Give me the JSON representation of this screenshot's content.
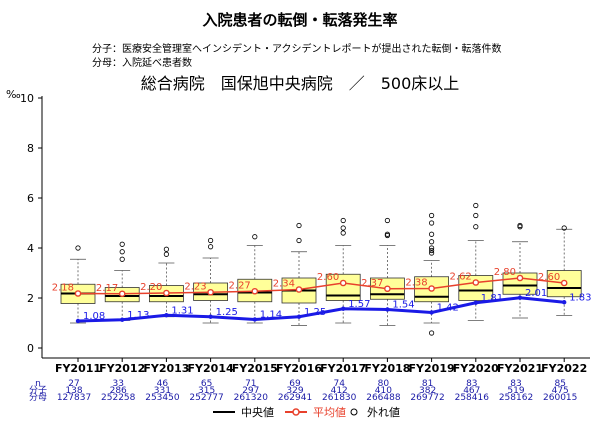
{
  "title": "入院患者の転倒・転落発生率",
  "notes": {
    "numerator": "分子：医療安全管理室へインシデント・アクシデントレポートが提出された転倒・転落件数",
    "denominator": "分母：入院延べ患者数"
  },
  "subtitle": "総合病院　国保旭中央病院　／　500床以上",
  "legend": {
    "median": "中央値",
    "mean": "平均値",
    "outlier": "外れ値"
  },
  "colors": {
    "box_fill": "#ffff99",
    "median": "#000000",
    "mean": "#e8412c",
    "hospital": "#1a1ae6",
    "count_text": "#1a1aa6"
  },
  "chart_data": {
    "type": "box",
    "y_unit": "‰",
    "ylim": [
      0,
      10
    ],
    "yticks": [
      0,
      2,
      4,
      6,
      8,
      10
    ],
    "categories": [
      "FY2011",
      "FY2012",
      "FY2013",
      "FY2014",
      "FY2015",
      "FY2016",
      "FY2017",
      "FY2018",
      "FY2019",
      "FY2020",
      "FY2021",
      "FY2022"
    ],
    "boxes": [
      {
        "whisker_low": 1.0,
        "q1": 1.78,
        "median": 2.18,
        "q3": 2.55,
        "whisker_high": 3.55,
        "outliers": [
          4.0
        ]
      },
      {
        "whisker_low": 1.1,
        "q1": 1.85,
        "median": 2.08,
        "q3": 2.42,
        "whisker_high": 3.1,
        "outliers": [
          3.55,
          3.85,
          4.15
        ]
      },
      {
        "whisker_low": 1.25,
        "q1": 1.85,
        "median": 2.08,
        "q3": 2.5,
        "whisker_high": 3.4,
        "outliers": [
          3.75,
          3.95
        ]
      },
      {
        "whisker_low": 1.0,
        "q1": 1.9,
        "median": 2.15,
        "q3": 2.6,
        "whisker_high": 3.6,
        "outliers": [
          4.05,
          4.3
        ]
      },
      {
        "whisker_low": 1.0,
        "q1": 1.85,
        "median": 2.22,
        "q3": 2.75,
        "whisker_high": 4.1,
        "outliers": [
          4.45
        ]
      },
      {
        "whisker_low": 0.9,
        "q1": 1.8,
        "median": 2.3,
        "q3": 2.8,
        "whisker_high": 3.85,
        "outliers": [
          4.3,
          4.9
        ]
      },
      {
        "whisker_low": 1.0,
        "q1": 1.9,
        "median": 2.1,
        "q3": 2.95,
        "whisker_high": 4.1,
        "outliers": [
          4.6,
          4.8,
          5.1
        ]
      },
      {
        "whisker_low": 0.9,
        "q1": 1.95,
        "median": 2.15,
        "q3": 2.8,
        "whisker_high": 4.1,
        "outliers": [
          4.5,
          4.55,
          5.1
        ]
      },
      {
        "whisker_low": 1.0,
        "q1": 1.85,
        "median": 2.05,
        "q3": 2.85,
        "whisker_high": 3.5,
        "outliers": [
          0.6,
          3.8,
          3.9,
          4.0,
          4.25,
          4.55,
          5.0,
          5.3
        ]
      },
      {
        "whisker_low": 1.1,
        "q1": 1.9,
        "median": 2.3,
        "q3": 2.9,
        "whisker_high": 4.3,
        "outliers": [
          4.85,
          5.3,
          5.7
        ]
      },
      {
        "whisker_low": 1.2,
        "q1": 2.15,
        "median": 2.5,
        "q3": 3.0,
        "whisker_high": 4.25,
        "outliers": [
          4.85,
          4.9
        ]
      },
      {
        "whisker_low": 1.3,
        "q1": 2.05,
        "median": 2.4,
        "q3": 3.1,
        "whisker_high": 4.75,
        "outliers": [
          4.8
        ]
      }
    ],
    "series": [
      {
        "name": "平均値",
        "values": [
          2.18,
          2.17,
          2.2,
          2.23,
          2.27,
          2.34,
          2.6,
          2.37,
          2.38,
          2.62,
          2.8,
          2.6
        ]
      },
      {
        "values": [
          1.08,
          1.13,
          1.31,
          1.25,
          1.14,
          1.25,
          1.57,
          1.54,
          1.42,
          1.81,
          2.01,
          1.83
        ]
      }
    ],
    "counts": {
      "labels": [
        "n",
        "分子",
        "分母"
      ],
      "n": [
        "27",
        "33",
        "46",
        "65",
        "71",
        "69",
        "74",
        "80",
        "81",
        "83",
        "83",
        "85"
      ],
      "numerator": [
        "138",
        "286",
        "331",
        "315",
        "297",
        "329",
        "412",
        "410",
        "382",
        "467",
        "519",
        "475"
      ],
      "denominator": [
        "127837",
        "252258",
        "253450",
        "252777",
        "261320",
        "262941",
        "261830",
        "266488",
        "269772",
        "258416",
        "258162",
        "260015"
      ]
    }
  }
}
